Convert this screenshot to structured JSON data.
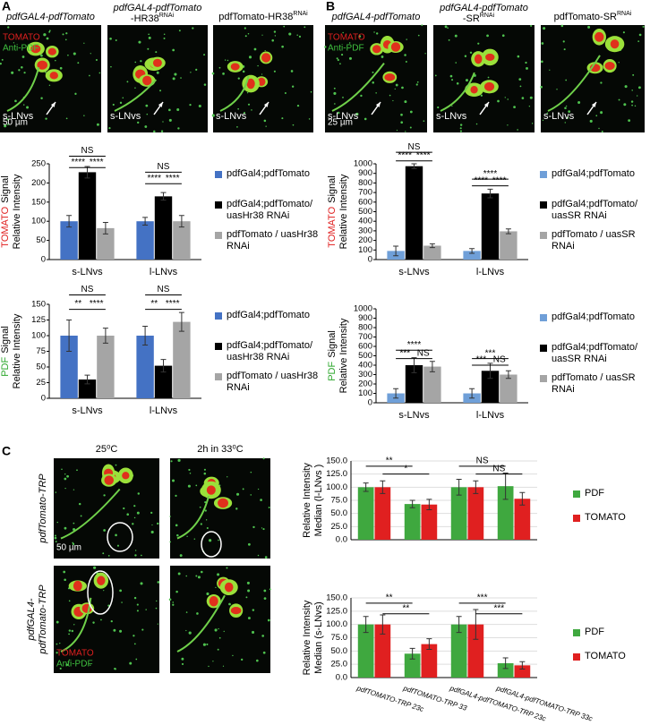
{
  "figure": {
    "panel_letters": [
      "A",
      "B",
      "C"
    ],
    "a_images": {
      "titles": [
        {
          "line1": "pdfGAL4-pdfTomato"
        },
        {
          "line1": "pdfGAL4-pdfTomato",
          "line2": "-HR38",
          "sup": "RNAi"
        },
        {
          "line1": "pdfTomato-HR38",
          "sup": "RNAi"
        }
      ],
      "stain_tomato": "TOMATO",
      "stain_pdf": "Anti-PDF",
      "cell_label": "s-LNvs",
      "scale": "50 µm"
    },
    "b_images": {
      "titles": [
        {
          "line1": "pdfGAL4-pdfTomato"
        },
        {
          "line1": "pdfGAL4-pdfTomato",
          "line2": "-SR",
          "sup": "RNAi"
        },
        {
          "line1": "pdfTomato-SR",
          "sup": "RNAi"
        }
      ],
      "stain_tomato": "TOMATO",
      "stain_pdf": "Anti-PDF",
      "cell_label": "s-LNvs",
      "scale": "25 µm"
    },
    "c_images": {
      "col_titles": [
        "25⁰C",
        "2h in 33⁰C"
      ],
      "row_titles": [
        [
          "pdfTomato-TRP"
        ],
        [
          "pdfGAL4-",
          "pdfTomato-TRP"
        ]
      ],
      "stain_tomato": "TOMATO",
      "stain_pdf": "Anti-PDF",
      "scale": "50 µm"
    }
  },
  "chart_data": [
    {
      "type": "bar",
      "y_label_highlight": "TOMATO",
      "y_label_highlight_color": "#e02020",
      "y_label": [
        "Signal",
        "Relative Intensity"
      ],
      "categories": [
        "s-LNvs",
        "l-LNvs"
      ],
      "ylim": [
        0,
        250
      ],
      "yticks": [
        0,
        50,
        100,
        150,
        200,
        250
      ],
      "grid": false,
      "series": [
        {
          "name": "pdfGal4;pdfTomato",
          "color": "#4472c4",
          "values": [
            100,
            100
          ],
          "errors": [
            15,
            10
          ]
        },
        {
          "name": "pdfGal4;pdfTomato/ uasHr38 RNAi",
          "color": "#000000",
          "values": [
            228,
            165
          ],
          "errors": [
            15,
            10
          ]
        },
        {
          "name": "pdfTomato / uasHr38 RNAi",
          "color": "#a5a5a5",
          "values": [
            82,
            100
          ],
          "errors": [
            15,
            15
          ]
        }
      ],
      "annotations": [
        "NS",
        "****",
        "****",
        "NS",
        "****",
        "****"
      ]
    },
    {
      "type": "bar",
      "y_label_highlight": "PDF",
      "y_label_highlight_color": "#2fa82f",
      "y_label": [
        "Signal",
        "Relative Intensity"
      ],
      "categories": [
        "s-LNvs",
        "l-LNvs"
      ],
      "ylim": [
        0,
        150
      ],
      "yticks": [
        0,
        25,
        50,
        75,
        100,
        125,
        150
      ],
      "grid": false,
      "series": [
        {
          "name": "pdfGal4;pdfTomato",
          "color": "#4472c4",
          "values": [
            100,
            100
          ],
          "errors": [
            25,
            15
          ]
        },
        {
          "name": "pdfGal4;pdfTomato/ uasHr38 RNAi",
          "color": "#000000",
          "values": [
            30,
            52
          ],
          "errors": [
            7,
            10
          ]
        },
        {
          "name": "pdfTomato / uasHr38 RNAi",
          "color": "#a5a5a5",
          "values": [
            100,
            122
          ],
          "errors": [
            12,
            15
          ]
        }
      ],
      "annotations": [
        "NS",
        "**",
        "****",
        "NS",
        "**",
        "****"
      ]
    },
    {
      "type": "bar",
      "y_label_highlight": "TOMATO",
      "y_label_highlight_color": "#e02020",
      "y_label": [
        "Signal",
        "Relative Intensity"
      ],
      "categories": [
        "s-LNvs",
        "l-LNvs"
      ],
      "ylim": [
        0,
        1000
      ],
      "yticks": [
        0,
        100,
        200,
        300,
        400,
        500,
        600,
        700,
        800,
        900,
        1000
      ],
      "grid": false,
      "series": [
        {
          "name": "pdfGal4;pdfTomato",
          "color": "#6f9fd8",
          "values": [
            90,
            90
          ],
          "errors": [
            50,
            25
          ]
        },
        {
          "name": "pdfGal4;pdfTomato/ uasSR RNAi",
          "color": "#000000",
          "values": [
            975,
            690
          ],
          "errors": [
            25,
            45
          ]
        },
        {
          "name": "pdfTomato / uasSR RNAi",
          "color": "#a5a5a5",
          "values": [
            145,
            295
          ],
          "errors": [
            20,
            25
          ]
        }
      ],
      "annotations": [
        "NS",
        "****",
        "****",
        "****",
        "****",
        "****"
      ]
    },
    {
      "type": "bar",
      "y_label_highlight": "PDF",
      "y_label_highlight_color": "#2fa82f",
      "y_label": [
        "Signal",
        "Relative Intensity"
      ],
      "categories": [
        "s-LNvs",
        "l-LNvs"
      ],
      "ylim": [
        0,
        1000
      ],
      "yticks": [
        0,
        100,
        200,
        300,
        400,
        500,
        600,
        700,
        800,
        900,
        1000
      ],
      "grid": false,
      "series": [
        {
          "name": "pdfGal4;pdfTomato",
          "color": "#6f9fd8",
          "values": [
            100,
            100
          ],
          "errors": [
            50,
            50
          ]
        },
        {
          "name": "pdfGal4;pdfTomato/ uasSR RNAi",
          "color": "#000000",
          "values": [
            400,
            340
          ],
          "errors": [
            80,
            80
          ]
        },
        {
          "name": "pdfTomato / uasSR RNAi",
          "color": "#a5a5a5",
          "values": [
            385,
            300
          ],
          "errors": [
            55,
            40
          ]
        }
      ],
      "annotations": [
        "****",
        "***",
        "NS",
        "***",
        "***",
        "NS"
      ]
    },
    {
      "type": "bar",
      "y_label": [
        "Relative Intensity",
        "Median (l-LNvs )"
      ],
      "categories": [
        null,
        null,
        null,
        null
      ],
      "ylim": [
        0,
        150
      ],
      "yticks": [
        {
          "value": 0,
          "label": "0.0"
        },
        {
          "value": 25,
          "label": "25.0"
        },
        {
          "value": 50,
          "label": "50.0"
        },
        {
          "value": 75,
          "label": "75.0"
        },
        {
          "value": 100,
          "label": "100.0"
        },
        {
          "value": 125,
          "label": "125.0"
        },
        {
          "value": 150,
          "label": "150.0"
        }
      ],
      "grid": true,
      "series": [
        {
          "name": "PDF",
          "color": "#3fa83f",
          "values": [
            100,
            68,
            100,
            102
          ],
          "errors": [
            8,
            7,
            15,
            25
          ]
        },
        {
          "name": "TOMATO",
          "color": "#e02020",
          "values": [
            100,
            67,
            100,
            78
          ],
          "errors": [
            12,
            10,
            12,
            12
          ]
        }
      ],
      "annotations": [
        "**",
        "*",
        "NS",
        "NS"
      ]
    },
    {
      "type": "bar",
      "y_label": [
        "Relative Intensity",
        "Median (s-LNvs)"
      ],
      "categories": [
        "pdfTOMATO-TRP 23c",
        "pdfTOMATO-TRP 33",
        "pdfGAL4-pdfTOMATO-TRP 23c",
        "pdfGAL4-pdfTOMATO-TRP 33c"
      ],
      "ylim": [
        0,
        150
      ],
      "yticks": [
        {
          "value": 0,
          "label": "0.0"
        },
        {
          "value": 25,
          "label": "25.0"
        },
        {
          "value": 50,
          "label": "50.0"
        },
        {
          "value": 75,
          "label": "75.0"
        },
        {
          "value": 100,
          "label": "100.0"
        },
        {
          "value": 125,
          "label": "125.0"
        },
        {
          "value": 150,
          "label": "150.0"
        }
      ],
      "grid": true,
      "series": [
        {
          "name": "PDF",
          "color": "#3fa83f",
          "values": [
            100,
            45,
            100,
            27
          ],
          "errors": [
            15,
            10,
            15,
            10
          ]
        },
        {
          "name": "TOMATO",
          "color": "#e02020",
          "values": [
            100,
            63,
            100,
            23
          ],
          "errors": [
            18,
            10,
            28,
            7
          ]
        }
      ],
      "annotations": [
        "**",
        "**",
        "***",
        "***"
      ]
    }
  ]
}
